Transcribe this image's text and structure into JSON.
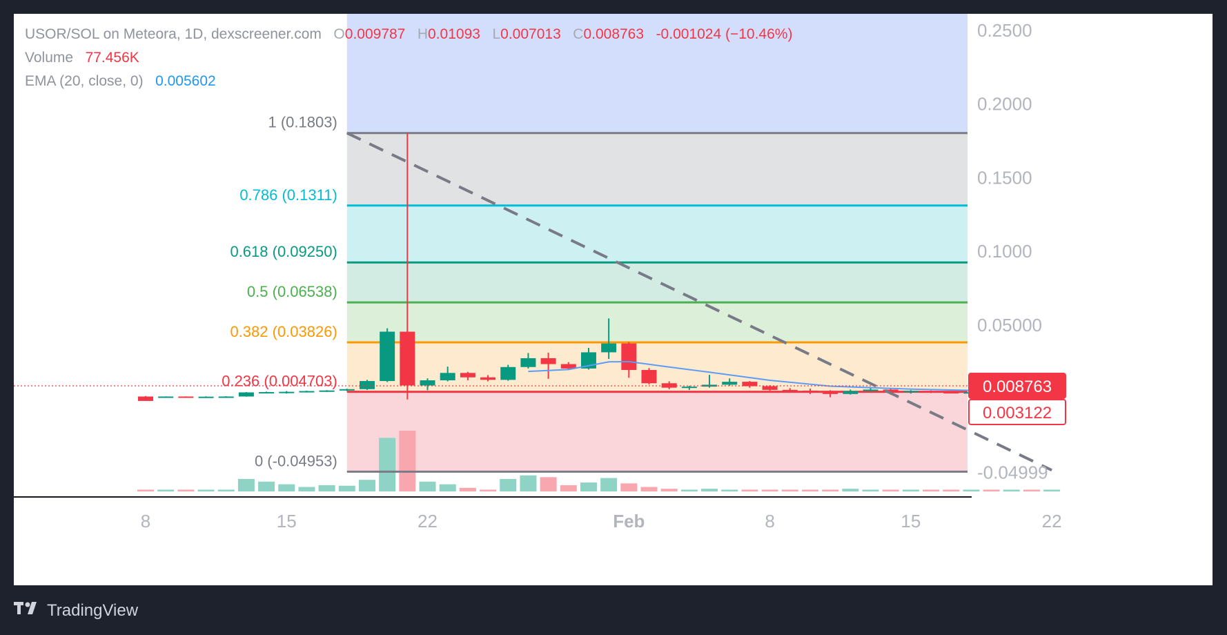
{
  "legend": {
    "symbol": "USOR/SOL on Meteora, 1D, dexscreener.com",
    "o_label": "O",
    "o_value": "0.009787",
    "h_label": "H",
    "h_value": "0.01093",
    "l_label": "L",
    "l_value": "0.007013",
    "c_label": "C",
    "c_value": "0.008763",
    "change": "-0.001024 (−10.46%)",
    "volume_label": "Volume",
    "volume_value": "77.456K",
    "ema_label": "EMA (20, close, 0)",
    "ema_value": "0.005602"
  },
  "brand": {
    "name": "TradingView",
    "icon": "tradingview-logo-icon"
  },
  "colors": {
    "up": "#089981",
    "down": "#f23645",
    "ema": "#5b9cf6",
    "trend": "#787b86"
  },
  "chart_data": {
    "type": "candlestick",
    "x_tick_labels": [
      "8",
      "15",
      "22",
      "Feb",
      "8",
      "15",
      "22"
    ],
    "x_tick_dates": [
      "2025-01-08",
      "2025-01-15",
      "2025-01-22",
      "2025-02-01",
      "2025-02-08",
      "2025-02-15",
      "2025-02-22"
    ],
    "y_tick_labels": [
      "0.2500",
      "0.2000",
      "0.1500",
      "0.1000",
      "0.05000",
      "-0.04999"
    ],
    "y_tick_values": [
      0.25,
      0.2,
      0.15,
      0.1,
      0.05,
      -0.04999
    ],
    "ylim": [
      -0.066,
      0.25
    ],
    "price_tags": [
      {
        "value": 0.008763,
        "label": "0.008763",
        "style": "filled"
      },
      {
        "value": 0.003122,
        "label": "0.003122",
        "style": "outlined"
      }
    ],
    "fib_levels": [
      {
        "ratio": "1",
        "value": 0.1803,
        "label": "1 (0.1803)",
        "color": "#787b86",
        "fill": "#e1e2e4"
      },
      {
        "ratio": "0.786",
        "value": 0.1311,
        "label": "0.786 (0.1311)",
        "color": "#00bcd4",
        "fill": "#cdf0f3"
      },
      {
        "ratio": "0.618",
        "value": 0.0925,
        "label": "0.618 (0.09250)",
        "color": "#089981",
        "fill": "#d2ebe3"
      },
      {
        "ratio": "0.5",
        "value": 0.06538,
        "label": "0.5 (0.06538)",
        "color": "#4caf50",
        "fill": "#dcefd9"
      },
      {
        "ratio": "0.382",
        "value": 0.03826,
        "label": "0.382 (0.03826)",
        "color": "#ff9800",
        "fill": "#feebcf"
      },
      {
        "ratio": "0.236",
        "value": 0.004703,
        "label": "0.236 (0.004703)",
        "color": "#f23645",
        "fill": "#fad6da"
      },
      {
        "ratio": "0",
        "value": -0.04953,
        "label": "0 (-0.04953)",
        "color": "#787b86",
        "fill": ""
      }
    ],
    "fib_extension_fill": "#d3defc",
    "fib_start_date": "2025-01-18",
    "fib_end_date": "2025-02-22",
    "trend_line": {
      "from": [
        "2025-01-18",
        0.1803
      ],
      "to": [
        "2025-02-22",
        -0.0485
      ]
    },
    "candles": [
      {
        "date": "2025-01-08",
        "open": 0.0015,
        "high": 0.0018,
        "low": -0.0015,
        "close": -0.0015,
        "volume": 1
      },
      {
        "date": "2025-01-09",
        "open": 0.0014,
        "high": 0.0016,
        "low": 0.0012,
        "close": 0.0015,
        "volume": 1
      },
      {
        "date": "2025-01-10",
        "open": 0.0015,
        "high": 0.0016,
        "low": 0.0012,
        "close": 0.0013,
        "volume": 1
      },
      {
        "date": "2025-01-11",
        "open": 0.0013,
        "high": 0.0016,
        "low": 0.0012,
        "close": 0.0014,
        "volume": 1
      },
      {
        "date": "2025-01-12",
        "open": 0.0014,
        "high": 0.0017,
        "low": 0.0013,
        "close": 0.0015,
        "volume": 1
      },
      {
        "date": "2025-01-13",
        "open": 0.0015,
        "high": 0.0045,
        "low": 0.0014,
        "close": 0.0043,
        "volume": 7
      },
      {
        "date": "2025-01-14",
        "open": 0.0043,
        "high": 0.0048,
        "low": 0.0036,
        "close": 0.0045,
        "volume": 5.5
      },
      {
        "date": "2025-01-15",
        "open": 0.0045,
        "high": 0.0052,
        "low": 0.0035,
        "close": 0.0047,
        "volume": 4
      },
      {
        "date": "2025-01-16",
        "open": 0.0047,
        "high": 0.0055,
        "low": 0.0042,
        "close": 0.0052,
        "volume": 2.5
      },
      {
        "date": "2025-01-17",
        "open": 0.0052,
        "high": 0.0058,
        "low": 0.0046,
        "close": 0.0056,
        "volume": 3.5
      },
      {
        "date": "2025-01-18",
        "open": 0.0056,
        "high": 0.0068,
        "low": 0.0052,
        "close": 0.0065,
        "volume": 3.2
      },
      {
        "date": "2025-01-19",
        "open": 0.0065,
        "high": 0.0128,
        "low": 0.006,
        "close": 0.012,
        "volume": 6.5
      },
      {
        "date": "2025-01-20",
        "open": 0.012,
        "high": 0.0478,
        "low": 0.0113,
        "close": 0.0455,
        "volume": 30
      },
      {
        "date": "2025-01-21",
        "open": 0.0455,
        "high": 0.1803,
        "low": -0.0005,
        "close": 0.009,
        "volume": 34
      },
      {
        "date": "2025-01-22",
        "open": 0.009,
        "high": 0.0138,
        "low": 0.0058,
        "close": 0.0125,
        "volume": 5.5
      },
      {
        "date": "2025-01-23",
        "open": 0.0125,
        "high": 0.0218,
        "low": 0.0118,
        "close": 0.0175,
        "volume": 4
      },
      {
        "date": "2025-01-24",
        "open": 0.0175,
        "high": 0.0182,
        "low": 0.0125,
        "close": 0.0145,
        "volume": 2
      },
      {
        "date": "2025-01-25",
        "open": 0.0145,
        "high": 0.016,
        "low": 0.0118,
        "close": 0.0128,
        "volume": 1
      },
      {
        "date": "2025-01-26",
        "open": 0.0128,
        "high": 0.023,
        "low": 0.0122,
        "close": 0.0215,
        "volume": 7
      },
      {
        "date": "2025-01-27",
        "open": 0.0215,
        "high": 0.031,
        "low": 0.0205,
        "close": 0.0275,
        "volume": 9
      },
      {
        "date": "2025-01-28",
        "open": 0.0275,
        "high": 0.0312,
        "low": 0.0135,
        "close": 0.0235,
        "volume": 8
      },
      {
        "date": "2025-01-29",
        "open": 0.0235,
        "high": 0.0248,
        "low": 0.0198,
        "close": 0.0205,
        "volume": 3.5
      },
      {
        "date": "2025-01-30",
        "open": 0.0205,
        "high": 0.0345,
        "low": 0.0198,
        "close": 0.0315,
        "volume": 5
      },
      {
        "date": "2025-01-31",
        "open": 0.0315,
        "high": 0.0545,
        "low": 0.027,
        "close": 0.0375,
        "volume": 7.5
      },
      {
        "date": "2025-02-01",
        "open": 0.0375,
        "high": 0.0385,
        "low": 0.0142,
        "close": 0.0195,
        "volume": 4.5
      },
      {
        "date": "2025-02-02",
        "open": 0.0195,
        "high": 0.0208,
        "low": 0.0098,
        "close": 0.0105,
        "volume": 2.5
      },
      {
        "date": "2025-02-03",
        "open": 0.0105,
        "high": 0.0118,
        "low": 0.0065,
        "close": 0.0075,
        "volume": 1.5
      },
      {
        "date": "2025-02-04",
        "open": 0.0075,
        "high": 0.0088,
        "low": 0.006,
        "close": 0.0082,
        "volume": 1
      },
      {
        "date": "2025-02-05",
        "open": 0.0082,
        "high": 0.0162,
        "low": 0.0075,
        "close": 0.0095,
        "volume": 1.5
      },
      {
        "date": "2025-02-06",
        "open": 0.0095,
        "high": 0.0138,
        "low": 0.0088,
        "close": 0.0115,
        "volume": 1
      },
      {
        "date": "2025-02-07",
        "open": 0.0115,
        "high": 0.012,
        "low": 0.0075,
        "close": 0.0085,
        "volume": 1
      },
      {
        "date": "2025-02-08",
        "open": 0.0085,
        "high": 0.0092,
        "low": 0.0055,
        "close": 0.006,
        "volume": 1
      },
      {
        "date": "2025-02-09",
        "open": 0.006,
        "high": 0.0072,
        "low": 0.005,
        "close": 0.0055,
        "volume": 1
      },
      {
        "date": "2025-02-10",
        "open": 0.0055,
        "high": 0.0068,
        "low": 0.0032,
        "close": 0.0048,
        "volume": 1
      },
      {
        "date": "2025-02-11",
        "open": 0.0048,
        "high": 0.0058,
        "low": 0.001,
        "close": 0.0032,
        "volume": 1
      },
      {
        "date": "2025-02-12",
        "open": 0.0032,
        "high": 0.0062,
        "low": 0.0028,
        "close": 0.0052,
        "volume": 1.5
      },
      {
        "date": "2025-02-13",
        "open": 0.0052,
        "high": 0.0078,
        "low": 0.0048,
        "close": 0.0062,
        "volume": 1
      },
      {
        "date": "2025-02-14",
        "open": 0.0062,
        "high": 0.0068,
        "low": 0.0028,
        "close": 0.0045,
        "volume": 1
      },
      {
        "date": "2025-02-15",
        "open": 0.0045,
        "high": 0.0058,
        "low": 0.0035,
        "close": 0.0052,
        "volume": 1
      },
      {
        "date": "2025-02-16",
        "open": 0.0052,
        "high": 0.0056,
        "low": 0.0038,
        "close": 0.0045,
        "volume": 1
      },
      {
        "date": "2025-02-17",
        "open": 0.0045,
        "high": 0.0052,
        "low": 0.0036,
        "close": 0.004,
        "volume": 1
      },
      {
        "date": "2025-02-18",
        "open": 0.004,
        "high": 0.0048,
        "low": 0.0032,
        "close": 0.0044,
        "volume": 1
      },
      {
        "date": "2025-02-19",
        "open": 0.0044,
        "high": 0.0046,
        "low": 0.003,
        "close": 0.0035,
        "volume": 1
      },
      {
        "date": "2025-02-20",
        "open": 0.0035,
        "high": 0.0042,
        "low": 0.0028,
        "close": 0.0036,
        "volume": 1
      },
      {
        "date": "2025-02-21",
        "open": 0.0036,
        "high": 0.0038,
        "low": 0.0022,
        "close": 0.0025,
        "volume": 1
      },
      {
        "date": "2025-02-22",
        "open": 0.0025,
        "high": 0.0036,
        "low": 0.002,
        "close": 0.0031,
        "volume": 1
      }
    ],
    "ema": {
      "dates": [
        "2025-01-27",
        "2025-01-29",
        "2025-01-31",
        "2025-02-01",
        "2025-02-03",
        "2025-02-05",
        "2025-02-08",
        "2025-02-11",
        "2025-02-15",
        "2025-02-22"
      ],
      "values": [
        0.0185,
        0.0198,
        0.025,
        0.0252,
        0.0215,
        0.018,
        0.0125,
        0.0085,
        0.0065,
        0.0046
      ]
    },
    "grid": false,
    "legend_position": "top-left"
  }
}
